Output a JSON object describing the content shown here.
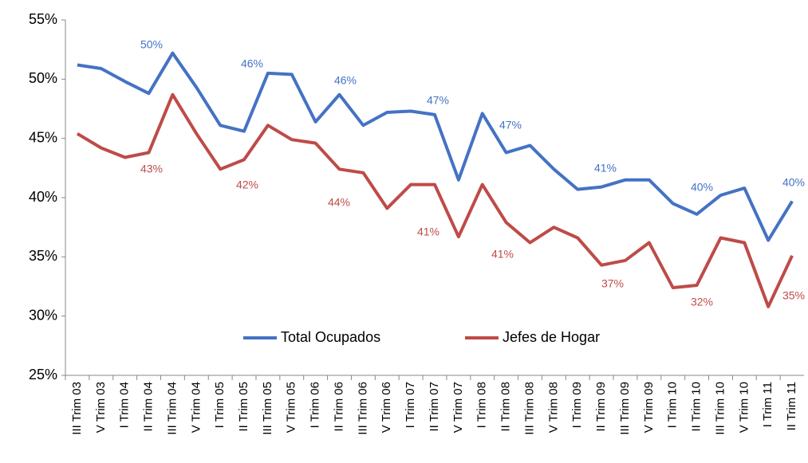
{
  "chart_data": {
    "type": "line",
    "categories": [
      "III Trim 03",
      "V Trim 03",
      "I Trim 04",
      "II Trim 04",
      "III Trim 04",
      "V Trim 04",
      "I Trim 05",
      "II Trim 05",
      "III Trim 05",
      "V Trim 05",
      "I Trim 06",
      "II Trim 06",
      "III Trim 06",
      "V Trim 06",
      "I Trim 07",
      "II Trim 07",
      "V Trim 07",
      "I Trim 08",
      "II Trim 08",
      "III Trim 08",
      "V Trim 08",
      "I Trim 09",
      "II Trim 09",
      "III Trim 09",
      "V Trim 09",
      "I Trim 10",
      "II Trim 10",
      "III Trim 10",
      "V Trim 10",
      "I Trim 11",
      "II Trim 11"
    ],
    "series": [
      {
        "name": "Total Ocupados",
        "color": "#4472c4",
        "values": [
          51.2,
          50.9,
          49.8,
          48.8,
          52.2,
          49.3,
          46.1,
          45.6,
          50.5,
          50.4,
          46.4,
          48.7,
          46.1,
          47.2,
          47.3,
          47.0,
          41.5,
          47.1,
          43.8,
          44.4,
          42.4,
          40.7,
          40.9,
          41.5,
          41.5,
          39.5,
          38.6,
          40.2,
          40.8,
          36.4,
          39.7
        ]
      },
      {
        "name": "Jefes de Hogar",
        "color": "#be4b48",
        "values": [
          45.4,
          44.2,
          43.4,
          43.8,
          48.7,
          45.4,
          42.4,
          43.2,
          46.1,
          44.9,
          44.6,
          42.4,
          42.1,
          39.1,
          41.1,
          41.1,
          36.7,
          41.1,
          37.9,
          36.2,
          37.5,
          36.6,
          34.3,
          34.7,
          36.2,
          32.4,
          32.6,
          36.6,
          36.2,
          30.8,
          35.1
        ]
      }
    ],
    "annotations": [
      {
        "text": "50%",
        "series": "Total Ocupados"
      },
      {
        "text": "46%",
        "series": "Total Ocupados"
      },
      {
        "text": "46%",
        "series": "Total Ocupados"
      },
      {
        "text": "47%",
        "series": "Total Ocupados"
      },
      {
        "text": "47%",
        "series": "Total Ocupados"
      },
      {
        "text": "41%",
        "series": "Total Ocupados"
      },
      {
        "text": "40%",
        "series": "Total Ocupados"
      },
      {
        "text": "40%",
        "series": "Total Ocupados"
      },
      {
        "text": "43%",
        "series": "Jefes de Hogar"
      },
      {
        "text": "42%",
        "series": "Jefes de Hogar"
      },
      {
        "text": "44%",
        "series": "Jefes de Hogar"
      },
      {
        "text": "41%",
        "series": "Jefes de Hogar"
      },
      {
        "text": "41%",
        "series": "Jefes de Hogar"
      },
      {
        "text": "37%",
        "series": "Jefes de Hogar"
      },
      {
        "text": "32%",
        "series": "Jefes de Hogar"
      },
      {
        "text": "35%",
        "series": "Jefes de Hogar"
      }
    ],
    "ylim": [
      25,
      55
    ],
    "yticks": [
      {
        "value": 25,
        "label": "25%"
      },
      {
        "value": 30,
        "label": "30%"
      },
      {
        "value": 35,
        "label": "35%"
      },
      {
        "value": 40,
        "label": "40%"
      },
      {
        "value": 45,
        "label": "45%"
      },
      {
        "value": 50,
        "label": "50%"
      },
      {
        "value": 55,
        "label": "55%"
      }
    ],
    "grid": false,
    "legend": "bottom"
  }
}
